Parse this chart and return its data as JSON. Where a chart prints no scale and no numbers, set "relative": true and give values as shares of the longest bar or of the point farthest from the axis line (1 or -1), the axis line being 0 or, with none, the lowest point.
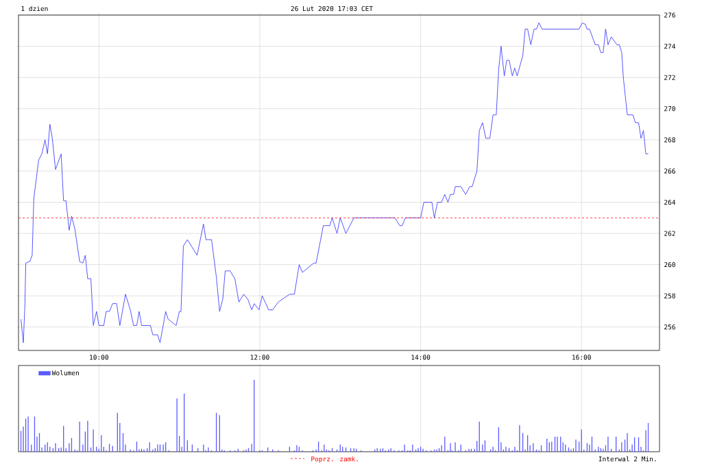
{
  "chart_data": [
    {
      "type": "line",
      "title": "1 dzien",
      "subtitle": "26 Lut 2020 17:03 CET",
      "annotations": [
        "Interwal 2 Min."
      ],
      "color": "#2b2bff",
      "x": [
        9.03,
        9.06,
        9.08,
        9.09,
        9.14,
        9.17,
        9.19,
        9.25,
        9.29,
        9.33,
        9.36,
        9.39,
        9.42,
        9.46,
        9.53,
        9.56,
        9.59,
        9.63,
        9.66,
        9.7,
        9.76,
        9.8,
        9.83,
        9.86,
        9.9,
        9.93,
        9.97,
        10.0,
        10.06,
        10.09,
        10.13,
        10.17,
        10.22,
        10.26,
        10.33,
        10.39,
        10.43,
        10.47,
        10.5,
        10.53,
        10.64,
        10.67,
        10.73,
        10.76,
        10.83,
        10.86,
        10.96,
        11.0,
        11.02,
        11.05,
        11.1,
        11.22,
        11.3,
        11.33,
        11.4,
        11.46,
        11.5,
        11.54,
        11.57,
        11.63,
        11.69,
        11.74,
        11.8,
        11.85,
        11.9,
        11.93,
        11.99,
        12.03,
        12.11,
        12.16,
        12.23,
        12.37,
        12.43,
        12.49,
        12.53,
        12.67,
        12.7,
        12.79,
        12.87,
        12.9,
        12.96,
        13.0,
        13.07,
        13.17,
        13.68,
        13.74,
        13.77,
        13.81,
        14.0,
        14.04,
        14.14,
        14.17,
        14.21,
        14.26,
        14.3,
        14.34,
        14.37,
        14.41,
        14.43,
        14.5,
        14.56,
        14.61,
        14.64,
        14.7,
        14.73,
        14.77,
        14.81,
        14.86,
        14.9,
        14.94,
        14.97,
        15.0,
        15.04,
        15.07,
        15.1,
        15.14,
        15.17,
        15.2,
        15.27,
        15.3,
        15.33,
        15.37,
        15.41,
        15.44,
        15.47,
        15.51,
        15.97,
        16.01,
        16.05,
        16.07,
        16.1,
        16.17,
        16.21,
        16.24,
        16.27,
        16.3,
        16.33,
        16.37,
        16.44,
        16.47,
        16.5,
        16.52,
        16.57,
        16.64,
        16.67,
        16.71,
        16.74,
        16.77,
        16.8,
        16.83
      ],
      "values": [
        256.5,
        255.0,
        257.5,
        260.1,
        260.2,
        260.6,
        264.2,
        266.7,
        267.1,
        268.0,
        267.1,
        269.0,
        268.1,
        266.1,
        267.1,
        264.1,
        264.1,
        262.2,
        263.1,
        262.3,
        260.2,
        260.1,
        260.6,
        259.1,
        259.1,
        256.1,
        257.0,
        256.1,
        256.1,
        257.0,
        257.0,
        257.5,
        257.5,
        256.1,
        258.1,
        257.1,
        256.1,
        256.1,
        257.0,
        256.1,
        256.1,
        255.5,
        255.5,
        255.0,
        257.0,
        256.5,
        256.1,
        257.0,
        257.0,
        261.2,
        261.6,
        260.6,
        262.6,
        261.6,
        261.6,
        259.2,
        257.0,
        257.8,
        259.6,
        259.6,
        259.1,
        257.6,
        258.1,
        257.8,
        257.1,
        257.5,
        257.1,
        258.0,
        257.1,
        257.1,
        257.6,
        258.1,
        258.1,
        260.0,
        259.5,
        260.1,
        260.1,
        262.5,
        262.5,
        263.0,
        262.0,
        263.0,
        262.0,
        263.0,
        263.0,
        262.5,
        262.5,
        263.0,
        263.0,
        264.0,
        264.0,
        263.0,
        264.0,
        264.0,
        264.5,
        264.0,
        264.5,
        264.5,
        265.0,
        265.0,
        264.5,
        265.0,
        265.0,
        266.0,
        268.6,
        269.1,
        268.1,
        268.1,
        269.6,
        269.6,
        272.5,
        274.0,
        272.1,
        273.1,
        273.1,
        272.1,
        272.6,
        272.1,
        273.4,
        275.1,
        275.1,
        274.1,
        275.1,
        275.1,
        275.5,
        275.1,
        275.1,
        275.5,
        275.4,
        275.1,
        275.1,
        274.1,
        274.1,
        273.6,
        273.6,
        275.1,
        274.1,
        274.6,
        274.1,
        274.1,
        273.6,
        272.0,
        269.6,
        269.6,
        269.1,
        269.1,
        268.1,
        268.6,
        267.1,
        267.1
      ],
      "xlim": [
        9,
        16.97
      ],
      "ylim": [
        254.5,
        276
      ],
      "xticks": [
        {
          "value": 10,
          "label": "10:00"
        },
        {
          "value": 12,
          "label": "12:00"
        },
        {
          "value": 14,
          "label": "14:00"
        },
        {
          "value": 16,
          "label": "16:00"
        }
      ],
      "yticks": [
        256,
        258,
        260,
        262,
        264,
        266,
        268,
        270,
        272,
        274,
        276
      ],
      "grid": true,
      "ref_lines": [
        {
          "axis": "y",
          "value": 263,
          "label": "Poprz. zamk.",
          "color": "#ff0000",
          "line_style": "dashed"
        }
      ]
    },
    {
      "type": "bar",
      "relative": true,
      "legend": "top left",
      "tick_labels": false,
      "grid": "x",
      "xlim": [
        9,
        16.97
      ],
      "xticks": [
        10,
        12,
        14,
        16
      ],
      "x": [
        9.03,
        9.06,
        9.09,
        9.12,
        9.16,
        9.2,
        9.23,
        9.26,
        9.29,
        9.33,
        9.36,
        9.39,
        9.43,
        9.46,
        9.5,
        9.53,
        9.56,
        9.59,
        9.63,
        9.66,
        9.7,
        9.73,
        9.76,
        9.8,
        9.83,
        9.86,
        9.9,
        9.93,
        9.97,
        10.0,
        10.03,
        10.06,
        10.09,
        10.13,
        10.17,
        10.23,
        10.26,
        10.3,
        10.33,
        10.39,
        10.43,
        10.47,
        10.5,
        10.53,
        10.56,
        10.6,
        10.63,
        10.67,
        10.7,
        10.73,
        10.76,
        10.8,
        10.83,
        10.87,
        10.97,
        11.0,
        11.03,
        11.06,
        11.1,
        11.16,
        11.23,
        11.3,
        11.33,
        11.36,
        11.4,
        11.46,
        11.5,
        11.53,
        11.56,
        11.63,
        11.69,
        11.73,
        11.8,
        11.83,
        11.86,
        11.9,
        11.93,
        12.0,
        12.03,
        12.1,
        12.16,
        12.23,
        12.37,
        12.43,
        12.46,
        12.49,
        12.53,
        12.66,
        12.7,
        12.73,
        12.77,
        12.8,
        12.83,
        12.86,
        12.9,
        12.96,
        13.0,
        13.03,
        13.07,
        13.13,
        13.17,
        13.2,
        13.26,
        13.43,
        13.46,
        13.5,
        13.53,
        13.56,
        13.6,
        13.63,
        13.67,
        13.73,
        13.77,
        13.8,
        13.84,
        13.87,
        13.9,
        13.94,
        13.97,
        14.0,
        14.03,
        14.07,
        14.13,
        14.17,
        14.2,
        14.23,
        14.26,
        14.3,
        14.34,
        14.37,
        14.39,
        14.43,
        14.47,
        14.5,
        14.56,
        14.6,
        14.63,
        14.67,
        14.7,
        14.73,
        14.77,
        14.8,
        14.87,
        14.9,
        14.93,
        14.97,
        15.0,
        15.03,
        15.06,
        15.1,
        15.14,
        15.17,
        15.2,
        15.23,
        15.27,
        15.3,
        15.33,
        15.36,
        15.4,
        15.44,
        15.47,
        15.5,
        15.57,
        15.6,
        15.63,
        15.67,
        15.7,
        15.74,
        15.77,
        15.8,
        15.84,
        15.87,
        15.9,
        15.93,
        15.97,
        16.0,
        16.03,
        16.07,
        16.1,
        16.13,
        16.17,
        16.21,
        16.24,
        16.27,
        16.3,
        16.33,
        16.37,
        16.43,
        16.47,
        16.5,
        16.54,
        16.57,
        16.6,
        16.63,
        16.66,
        16.71,
        16.74,
        16.77,
        16.8,
        16.83
      ],
      "series": [
        {
          "name": "Wolumen",
          "color": "#5a5aff",
          "values": [
            0.29,
            0.35,
            0.46,
            0.49,
            0.1,
            0.49,
            0.21,
            0.26,
            0.06,
            0.1,
            0.13,
            0.07,
            0.05,
            0.12,
            0.05,
            0.06,
            0.36,
            0.05,
            0.12,
            0.19,
            0.03,
            0.02,
            0.42,
            0.1,
            0.28,
            0.43,
            0.06,
            0.31,
            0.07,
            0.04,
            0.23,
            0.07,
            0.02,
            0.11,
            0.08,
            0.54,
            0.4,
            0.26,
            0.1,
            0.03,
            0.02,
            0.14,
            0.03,
            0.04,
            0.03,
            0.05,
            0.13,
            0.03,
            0.05,
            0.1,
            0.1,
            0.1,
            0.13,
            0.02,
            0.74,
            0.22,
            0.07,
            0.81,
            0.16,
            0.1,
            0.05,
            0.1,
            0.02,
            0.06,
            0.02,
            0.54,
            0.51,
            0.03,
            0.02,
            0.02,
            0.02,
            0.04,
            0.02,
            0.03,
            0.05,
            0.11,
            1.0,
            0.02,
            0.02,
            0.06,
            0.03,
            0.02,
            0.07,
            0.02,
            0.09,
            0.07,
            0.02,
            0.02,
            0.03,
            0.14,
            0.02,
            0.1,
            0.03,
            0.02,
            0.05,
            0.03,
            0.1,
            0.07,
            0.06,
            0.05,
            0.05,
            0.04,
            0.02,
            0.03,
            0.05,
            0.04,
            0.05,
            0.02,
            0.03,
            0.05,
            0.02,
            0.02,
            0.02,
            0.1,
            0.02,
            0.02,
            0.1,
            0.03,
            0.05,
            0.07,
            0.04,
            0.02,
            0.02,
            0.03,
            0.03,
            0.05,
            0.09,
            0.21,
            0.02,
            0.12,
            0.02,
            0.13,
            0.02,
            0.1,
            0.02,
            0.04,
            0.04,
            0.04,
            0.15,
            0.42,
            0.1,
            0.16,
            0.03,
            0.07,
            0.02,
            0.34,
            0.13,
            0.03,
            0.07,
            0.05,
            0.02,
            0.07,
            0.02,
            0.37,
            0.26,
            0.03,
            0.23,
            0.09,
            0.12,
            0.03,
            0.02,
            0.09,
            0.18,
            0.13,
            0.14,
            0.21,
            0.21,
            0.21,
            0.13,
            0.1,
            0.06,
            0.03,
            0.05,
            0.17,
            0.14,
            0.31,
            0.03,
            0.12,
            0.1,
            0.21,
            0.03,
            0.07,
            0.05,
            0.04,
            0.09,
            0.21,
            0.04,
            0.21,
            0.03,
            0.13,
            0.17,
            0.26,
            0.03,
            0.1,
            0.2,
            0.2,
            0.07,
            0.02,
            0.3,
            0.4
          ]
        }
      ]
    }
  ]
}
